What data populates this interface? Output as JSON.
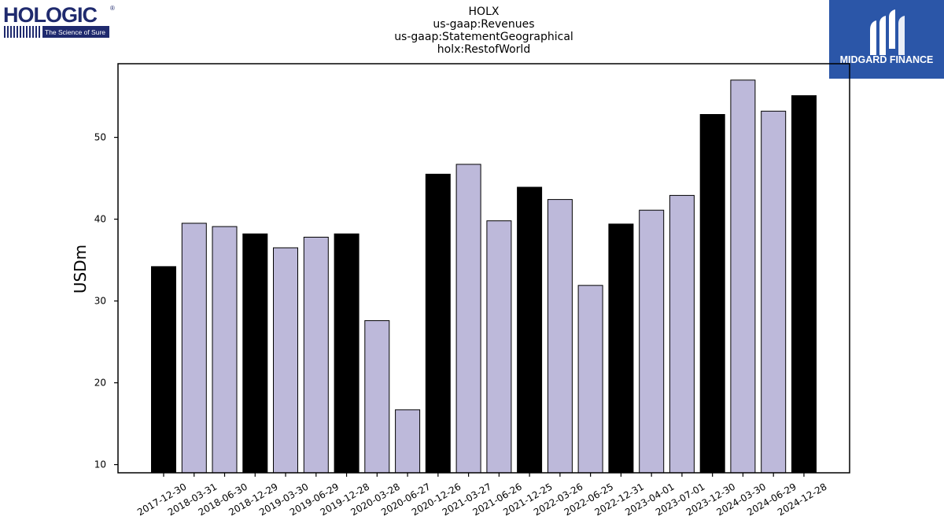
{
  "header": {
    "title_lines": [
      "HOLX",
      "us-gaap:Revenues",
      "us-gaap:StatementGeographical",
      "holx:RestofWorld"
    ]
  },
  "logos": {
    "left": {
      "text": "HOLOGIC",
      "registered": "®",
      "tagline": "The Science of Sure",
      "color": "#1f2a6e"
    },
    "right": {
      "text": "MIDGARD FINANCE",
      "color": "#2b56a8"
    }
  },
  "chart_data": {
    "type": "bar",
    "ylabel": "USDm",
    "xlabel": "",
    "ylim": [
      9,
      59
    ],
    "yticks": [
      10,
      20,
      30,
      40,
      50
    ],
    "categories": [
      "2017-12-30",
      "2018-03-31",
      "2018-06-30",
      "2018-12-29",
      "2019-03-30",
      "2019-06-29",
      "2019-12-28",
      "2020-03-28",
      "2020-06-27",
      "2020-12-26",
      "2021-03-27",
      "2021-06-26",
      "2021-12-25",
      "2022-03-26",
      "2022-06-25",
      "2022-12-31",
      "2023-04-01",
      "2023-07-01",
      "2023-12-30",
      "2024-03-30",
      "2024-06-29",
      "2024-12-28"
    ],
    "values": [
      34.2,
      39.5,
      39.1,
      38.2,
      36.5,
      37.8,
      38.2,
      27.6,
      16.7,
      45.5,
      46.7,
      39.8,
      43.9,
      42.4,
      31.9,
      39.4,
      41.1,
      42.9,
      52.8,
      57.0,
      53.2,
      55.1
    ],
    "bar_colors": [
      "#000000",
      "#bdb9da",
      "#bdb9da",
      "#000000",
      "#bdb9da",
      "#bdb9da",
      "#000000",
      "#bdb9da",
      "#bdb9da",
      "#000000",
      "#bdb9da",
      "#bdb9da",
      "#000000",
      "#bdb9da",
      "#bdb9da",
      "#000000",
      "#bdb9da",
      "#bdb9da",
      "#000000",
      "#bdb9da",
      "#bdb9da",
      "#000000"
    ],
    "grid": false
  }
}
